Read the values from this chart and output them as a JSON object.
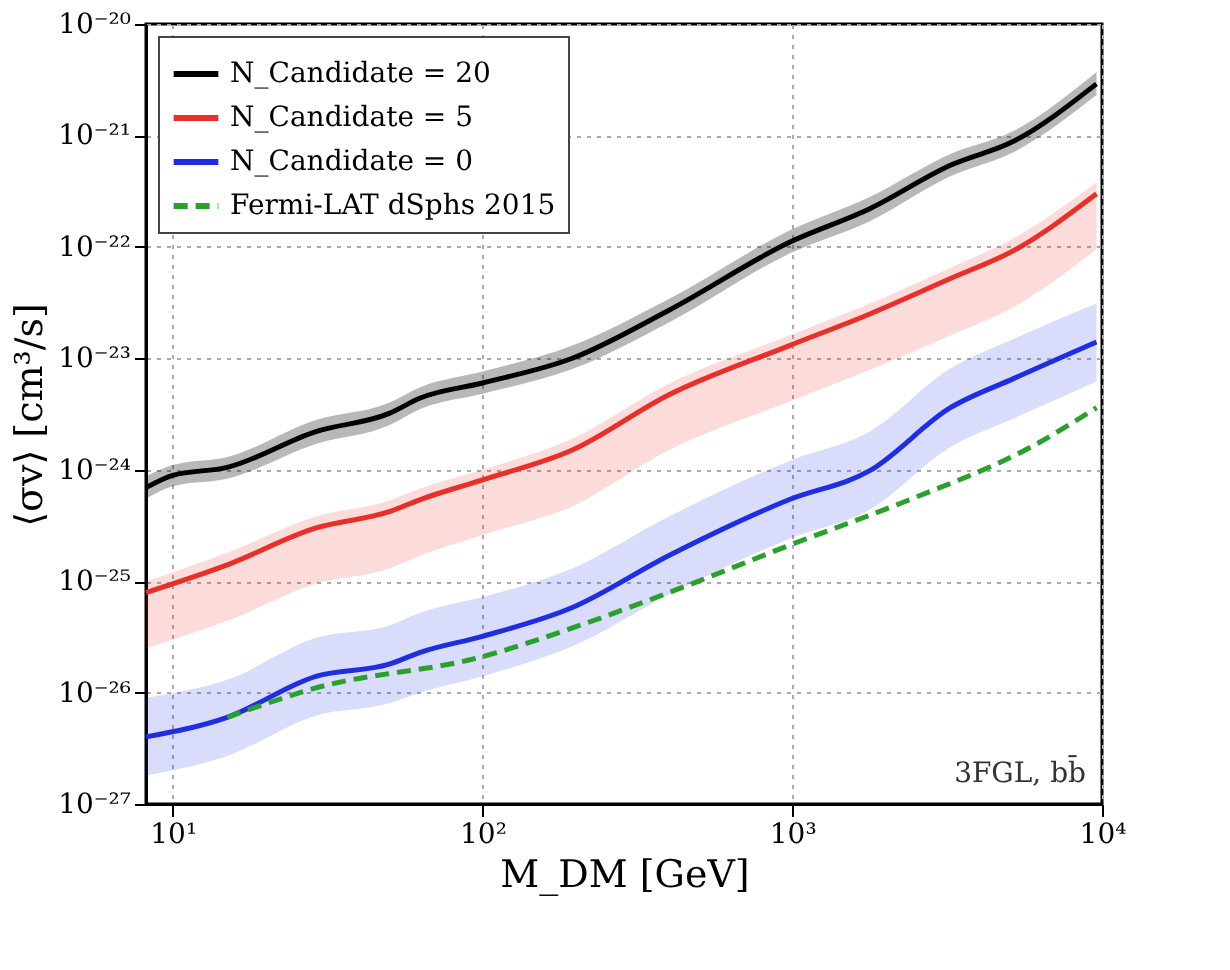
{
  "chart_data": {
    "type": "line",
    "xlabel": "M_DM [GeV]",
    "ylabel": "⟨σv⟩ [cm³/s]",
    "log": "xy",
    "grid": true,
    "legend": "top left",
    "xlim": [
      8.2,
      10000
    ],
    "ylim": [
      1e-27,
      1e-20
    ],
    "xticks": [
      {
        "value": 10,
        "label": "10¹"
      },
      {
        "value": 100,
        "label": "10²"
      },
      {
        "value": 1000,
        "label": "10³"
      },
      {
        "value": 10000,
        "label": "10⁴"
      }
    ],
    "yticks": [
      {
        "value": 1e-27,
        "label": "10⁻²⁷"
      },
      {
        "value": 1e-26,
        "label": "10⁻²⁶"
      },
      {
        "value": 1e-25,
        "label": "10⁻²⁵"
      },
      {
        "value": 1e-24,
        "label": "10⁻²⁴"
      },
      {
        "value": 1e-23,
        "label": "10⁻²³"
      },
      {
        "value": 1e-22,
        "label": "10⁻²²"
      },
      {
        "value": 1e-21,
        "label": "10⁻²¹"
      },
      {
        "value": 1e-20,
        "label": "10⁻²⁰"
      }
    ],
    "annotations": [
      "3FGL, bb̄"
    ],
    "series": [
      {
        "name": "N_Candidate = 20",
        "line_style": "solid",
        "color": "#000000",
        "x": [
          8.2,
          10,
          15,
          29,
          50,
          63,
          100,
          195,
          400,
          980,
          1780,
          3240,
          5200,
          9600
        ],
        "values": [
          6.9e-25,
          8.9e-25,
          1.05e-24,
          2.2e-24,
          3.2e-24,
          4.4e-24,
          6e-24,
          1e-23,
          2.7e-23,
          1.1e-22,
          2.2e-22,
          5.4e-22,
          8.9e-22,
          2.9e-21
        ],
        "lower": [
          5.5e-25,
          7.1e-25,
          8.3e-25,
          1.7e-24,
          2.5e-24,
          3.5e-24,
          4.8e-24,
          8e-24,
          2.1e-23,
          8.7e-23,
          1.7e-22,
          4.3e-22,
          7.1e-22,
          2.3e-21
        ],
        "upper": [
          8.7e-25,
          1.1e-24,
          1.3e-24,
          2.8e-24,
          4e-24,
          5.5e-24,
          7.6e-24,
          1.3e-23,
          3.4e-23,
          1.4e-22,
          2.8e-22,
          6.8e-22,
          1.1e-21,
          3.7e-21
        ]
      },
      {
        "name": "N_Candidate = 5",
        "line_style": "solid",
        "color": "#e8302a",
        "x": [
          8.2,
          15,
          29,
          50,
          63,
          100,
          195,
          400,
          980,
          1780,
          3240,
          5200,
          9600
        ],
        "values": [
          7.9e-26,
          1.4e-25,
          3e-25,
          4.2e-25,
          5.4e-25,
          8.1e-25,
          1.5e-24,
          4.7e-24,
          1.3e-23,
          2.5e-23,
          5.2e-23,
          9.3e-23,
          3e-22
        ],
        "lower": [
          2.5e-26,
          4.4e-26,
          9.5e-26,
          1.3e-25,
          1.7e-25,
          2.6e-25,
          4.7e-25,
          1.5e-24,
          4.1e-24,
          7.9e-24,
          1.6e-23,
          2.9e-23,
          9.5e-23
        ],
        "upper": [
          9.9e-26,
          1.8e-25,
          3.8e-25,
          5.3e-25,
          6.8e-25,
          1e-24,
          1.9e-24,
          5.9e-24,
          1.6e-23,
          3.1e-23,
          6.5e-23,
          1.2e-22,
          3.8e-22
        ]
      },
      {
        "name": "N_Candidate = 0",
        "line_style": "solid",
        "color": "#1f2fe0",
        "x": [
          8.2,
          15,
          29,
          50,
          63,
          100,
          195,
          400,
          980,
          1780,
          3240,
          5200,
          9600
        ],
        "values": [
          4e-27,
          6e-27,
          1.4e-26,
          1.8e-26,
          2.3e-26,
          3.2e-26,
          5.8e-26,
          1.7e-25,
          5.4e-25,
          9.8e-25,
          3.6e-24,
          6.6e-24,
          1.4e-23
        ],
        "lower": [
          1.8e-27,
          2.7e-27,
          6.2e-27,
          8e-27,
          1e-26,
          1.4e-26,
          2.6e-26,
          7.6e-26,
          2.4e-25,
          4.4e-25,
          1.6e-24,
          2.9e-24,
          6.2e-24
        ],
        "upper": [
          9e-27,
          1.3e-26,
          3.1e-26,
          4e-26,
          5.2e-26,
          7.2e-26,
          1.3e-25,
          3.8e-25,
          1.2e-24,
          2.2e-24,
          8.1e-24,
          1.5e-23,
          3.1e-23
        ]
      },
      {
        "name": "Fermi-LAT dSphs 2015",
        "line_style": "dashed",
        "color": "#2ca02c",
        "x": [
          15,
          29,
          100,
          195,
          400,
          980,
          2400,
          5900,
          9600
        ],
        "values": [
          6e-27,
          1.1e-26,
          2.1e-26,
          3.8e-26,
          7.9e-26,
          2.1e-25,
          5.4e-25,
          1.6e-24,
          3.6e-24
        ]
      }
    ]
  }
}
